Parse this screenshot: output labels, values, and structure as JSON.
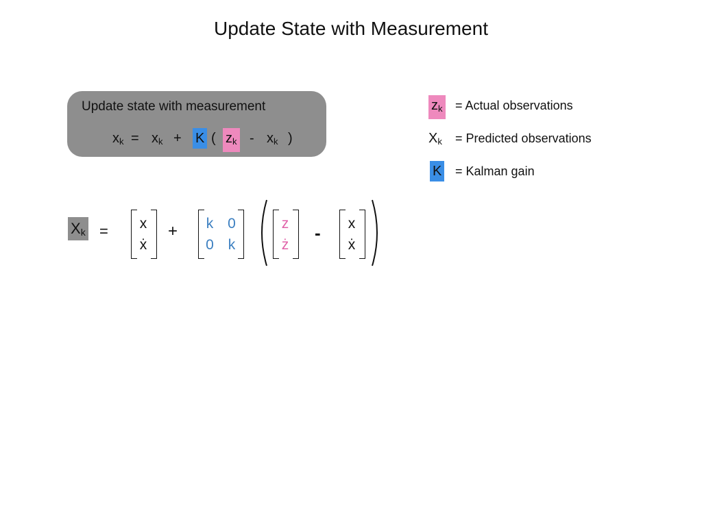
{
  "title": "Update State with Measurement",
  "box": {
    "caption": "Update state with measurement",
    "lhs": "x",
    "sub": "k",
    "equals": "=",
    "term1": "x",
    "plus": "+",
    "gain": "K",
    "open_paren": "(",
    "obs": "z",
    "minus": "-",
    "term3": "x",
    "close_paren": ")"
  },
  "legend": [
    {
      "symbol": "z",
      "sub": "k",
      "text": "= Actual observations",
      "highlight": "#ee89bd"
    },
    {
      "symbol": "X",
      "sub": "k",
      "text": "= Predicted observations",
      "highlight": null
    },
    {
      "symbol": "K",
      "sub": "",
      "text": "= Kalman gain",
      "highlight": "#3a8ee6"
    }
  ],
  "matrix_eq": {
    "lhs": "X",
    "lhs_sub": "k",
    "equals": "=",
    "plus": "+",
    "minus": "-",
    "state": [
      "x",
      "ẋ"
    ],
    "gain": [
      [
        "k",
        "0"
      ],
      [
        "0",
        "k"
      ]
    ],
    "measurement": [
      "z",
      "ż"
    ],
    "predicted": [
      "x",
      "ẋ"
    ]
  },
  "colors": {
    "box_bg": "#8e8e8e",
    "gain_highlight": "#3a8ee6",
    "obs_highlight": "#ee89bd",
    "gain_text": "#3a7ec0",
    "obs_text": "#e062a8"
  }
}
